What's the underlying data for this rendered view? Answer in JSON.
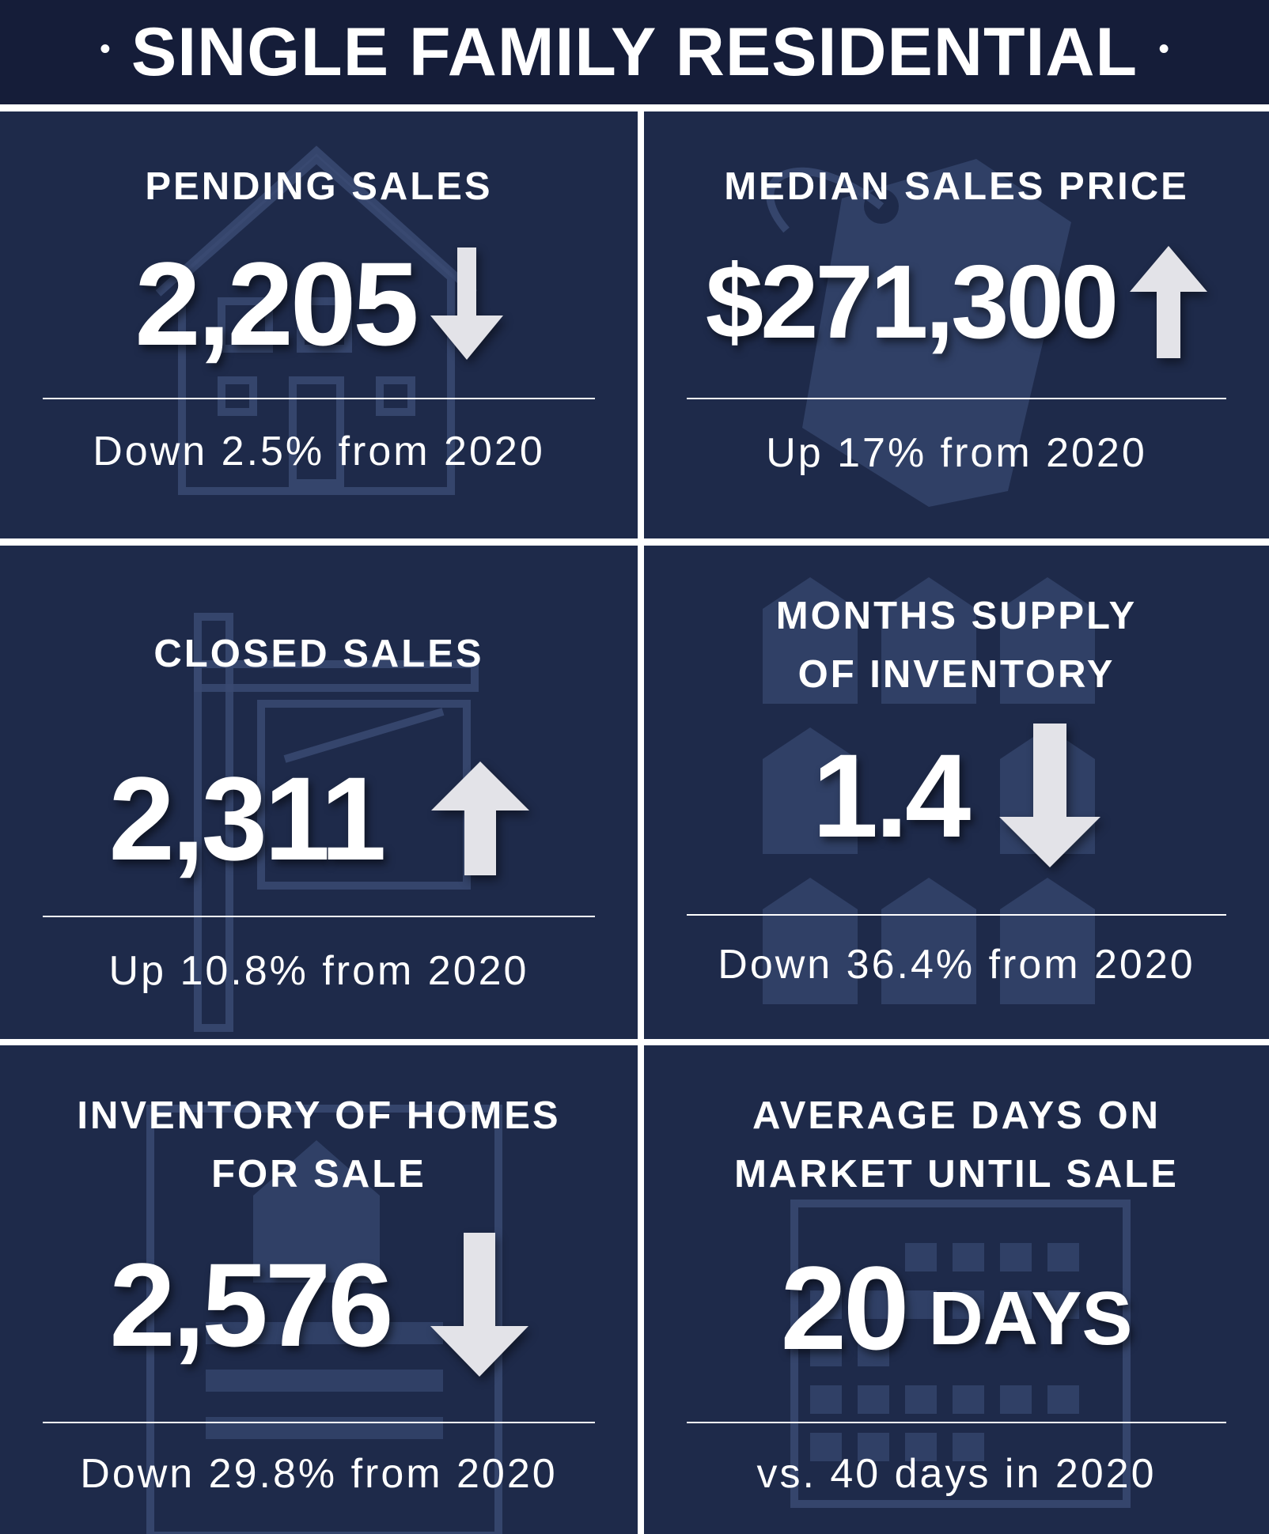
{
  "header": {
    "title": "SINGLE FAMILY RESIDENTIAL",
    "bullet": "•"
  },
  "tiles": {
    "pending_sales": {
      "label": "PENDING SALES",
      "value": "2,205",
      "trend": "down",
      "change": "Down 2.5% from 2020",
      "icon": "house-icon"
    },
    "median_sales_price": {
      "label": "MEDIAN SALES PRICE",
      "value": "$271,300",
      "trend": "up",
      "change": "Up 17% from 2020",
      "icon": "price-tag-icon"
    },
    "closed_sales": {
      "label": "CLOSED SALES",
      "value": "2,311",
      "trend": "up",
      "change": "Up 10.8% from 2020",
      "icon": "sold-sign-icon"
    },
    "months_supply": {
      "label_line1": "MONTHS SUPPLY",
      "label_line2": "OF INVENTORY",
      "value": "1.4",
      "trend": "down",
      "change": "Down 36.4% from 2020",
      "icon": "houses-grid-icon"
    },
    "inventory": {
      "label_line1": "INVENTORY OF HOMES",
      "label_line2": "FOR SALE",
      "value": "2,576",
      "trend": "down",
      "change": "Down 29.8% from 2020",
      "icon": "listing-house-icon"
    },
    "avg_days": {
      "label_line1": "AVERAGE DAYS ON",
      "label_line2": "MARKET UNTIL SALE",
      "value": "20",
      "unit": "DAYS",
      "change": "vs. 40 days in 2020",
      "icon": "calendar-icon"
    }
  },
  "colors": {
    "header_bg": "#151d39",
    "tile_bg": "#1e2a4a",
    "text": "#ffffff",
    "arrow": "#e3e3e8",
    "icon_watermark": "#3a4a72"
  }
}
